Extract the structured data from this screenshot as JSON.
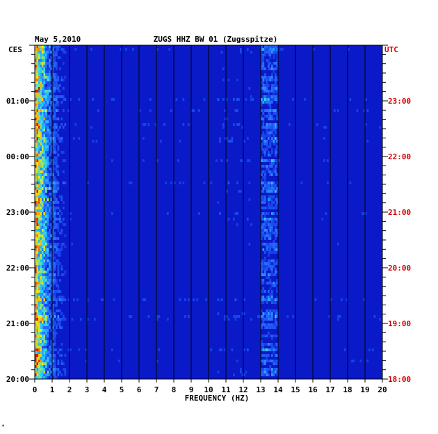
{
  "header": {
    "date": "May 5,2010",
    "station": "ZUGS HHZ BW 01 (Zugsspitze)",
    "left_tz": "CES",
    "right_tz": "UTC"
  },
  "footer": {
    "mark": "*"
  },
  "colors": {
    "background_low": "#0a1ad0",
    "mid": "#2a6cff",
    "cyan": "#20e0ff",
    "yellow": "#f0f000",
    "red": "#e01000",
    "utc_label": "#d00000",
    "grid": "#000000"
  },
  "chart_data": {
    "type": "heatmap",
    "title": "ZUGS HHZ BW 01 (Zugsspitze)",
    "xlabel": "FREQUENCY (HZ)",
    "ylabel": "",
    "xlim": [
      0,
      20
    ],
    "x_ticks": [
      "0",
      "1",
      "2",
      "3",
      "4",
      "5",
      "6",
      "7",
      "8",
      "9",
      "10",
      "11",
      "12",
      "13",
      "14",
      "15",
      "16",
      "17",
      "18",
      "19",
      "20"
    ],
    "left_time_labels": [
      "01:00",
      "00:00",
      "23:00",
      "22:00",
      "21:00",
      "20:00"
    ],
    "right_time_labels": [
      "23:00",
      "22:00",
      "21:00",
      "20:00",
      "19:00",
      "18:00"
    ],
    "time_range_utc": [
      "18:00",
      "24:00"
    ],
    "features": [
      {
        "name": "low-frequency band",
        "freq_hz": [
          0,
          1
        ],
        "intensity": "high"
      },
      {
        "name": "band near 13.5 Hz",
        "freq_hz": [
          13,
          14
        ],
        "intensity": "moderate"
      }
    ]
  }
}
